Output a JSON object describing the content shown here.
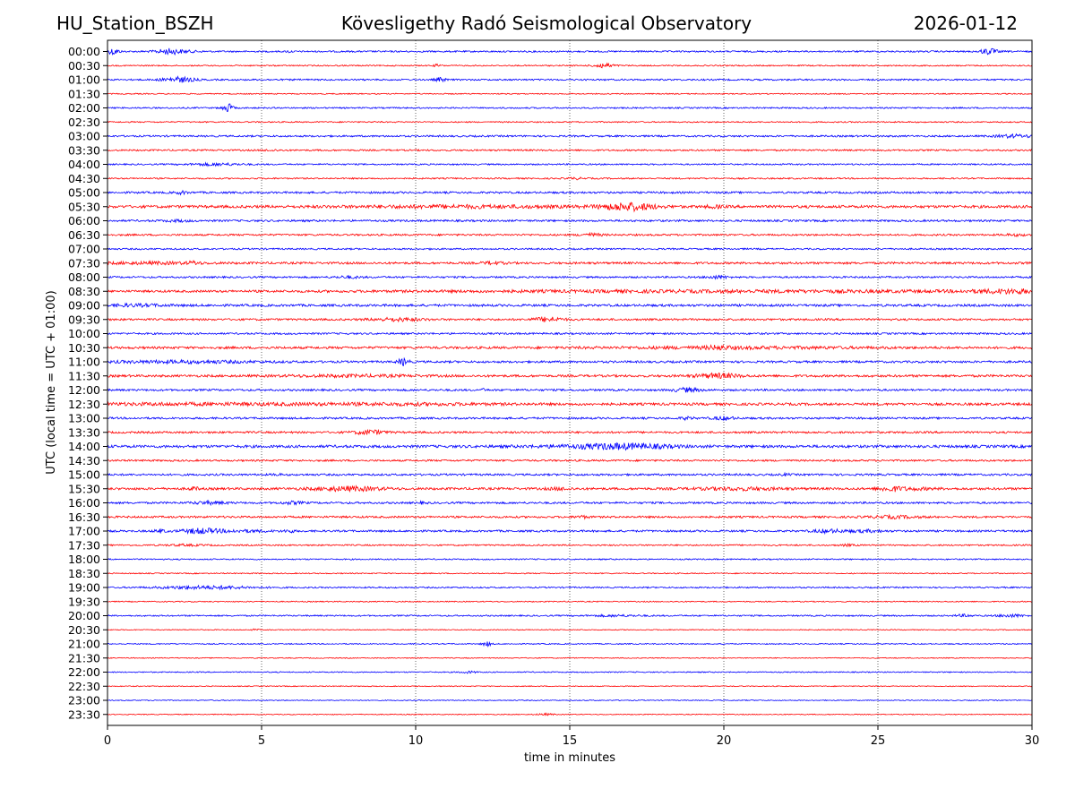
{
  "header": {
    "station": "HU_Station_BSZH",
    "title": "Kövesligethy Radó Seismological Observatory",
    "date": "2026-01-12"
  },
  "chart_data": {
    "type": "line",
    "title": "Kövesligethy Radó Seismological Observatory",
    "xlabel": "time in minutes",
    "ylabel": "UTC (local time = UTC + 01:00)",
    "xlim": [
      0,
      30
    ],
    "xticks": [
      0,
      5,
      10,
      15,
      20,
      25,
      30
    ],
    "grid": "vertical dotted at 5-minute ticks",
    "colors": {
      "even": "#0000ff",
      "odd": "#ff0000"
    },
    "rows": [
      {
        "label": "00:00",
        "noise": 0.9,
        "events": [
          [
            0.2,
            3.5,
            0.12
          ],
          [
            2.0,
            1.8,
            0.25
          ],
          [
            2.2,
            1.2,
            0.5
          ],
          [
            5.9,
            1.0,
            0.06
          ],
          [
            28.6,
            3.2,
            0.18
          ]
        ]
      },
      {
        "label": "00:30",
        "noise": 0.7,
        "events": [
          [
            10.7,
            1.2,
            0.08
          ],
          [
            16.1,
            2.8,
            0.22
          ]
        ]
      },
      {
        "label": "01:00",
        "noise": 0.9,
        "events": [
          [
            2.3,
            2.8,
            0.35
          ],
          [
            10.8,
            2.0,
            0.12
          ]
        ]
      },
      {
        "label": "01:30",
        "noise": 0.6,
        "events": []
      },
      {
        "label": "02:00",
        "noise": 0.8,
        "events": [
          [
            3.9,
            4.5,
            0.12
          ]
        ]
      },
      {
        "label": "02:30",
        "noise": 0.7,
        "events": []
      },
      {
        "label": "03:00",
        "noise": 1.0,
        "events": [
          [
            29.4,
            1.5,
            0.4
          ]
        ]
      },
      {
        "label": "03:30",
        "noise": 0.9,
        "events": [
          [
            5.3,
            0.6,
            0.2
          ]
        ]
      },
      {
        "label": "04:00",
        "noise": 0.8,
        "events": [
          [
            3.5,
            1.2,
            0.6
          ]
        ]
      },
      {
        "label": "04:30",
        "noise": 0.8,
        "events": [
          [
            15.2,
            0.8,
            0.2
          ]
        ]
      },
      {
        "label": "05:00",
        "noise": 1.1,
        "events": [
          [
            2.4,
            1.3,
            0.15
          ]
        ]
      },
      {
        "label": "05:30",
        "noise": 1.5,
        "events": [
          [
            11.5,
            1.0,
            2.5
          ],
          [
            16.9,
            3.8,
            0.6
          ],
          [
            19.7,
            1.2,
            0.2
          ]
        ]
      },
      {
        "label": "06:00",
        "noise": 1.1,
        "events": [
          [
            2.3,
            0.8,
            0.3
          ]
        ]
      },
      {
        "label": "06:30",
        "noise": 1.0,
        "events": [
          [
            15.7,
            1.4,
            0.25
          ],
          [
            29.5,
            0.8,
            0.3
          ]
        ]
      },
      {
        "label": "07:00",
        "noise": 0.9,
        "events": []
      },
      {
        "label": "07:30",
        "noise": 1.2,
        "events": [
          [
            1.5,
            0.9,
            1.2
          ],
          [
            2.8,
            1.3,
            0.12
          ],
          [
            12.5,
            1.2,
            0.25
          ]
        ]
      },
      {
        "label": "08:00",
        "noise": 1.0,
        "events": [
          [
            7.8,
            0.9,
            0.3
          ],
          [
            19.8,
            1.4,
            0.25
          ]
        ]
      },
      {
        "label": "08:30",
        "noise": 1.2,
        "events": [
          [
            21.0,
            0.9,
            8.0
          ],
          [
            29.3,
            1.6,
            0.8
          ]
        ]
      },
      {
        "label": "09:00",
        "noise": 1.3,
        "events": [
          [
            0.8,
            1.0,
            0.8
          ]
        ]
      },
      {
        "label": "09:30",
        "noise": 1.1,
        "events": [
          [
            9.4,
            1.5,
            0.6
          ],
          [
            14.3,
            2.2,
            0.35
          ]
        ]
      },
      {
        "label": "10:00",
        "noise": 1.0,
        "events": []
      },
      {
        "label": "10:30",
        "noise": 1.3,
        "events": [
          [
            19.8,
            1.3,
            0.25
          ],
          [
            20.5,
            0.8,
            3.0
          ]
        ]
      },
      {
        "label": "11:00",
        "noise": 1.2,
        "events": [
          [
            2.5,
            1.1,
            1.8
          ],
          [
            9.6,
            3.5,
            0.12
          ]
        ]
      },
      {
        "label": "11:30",
        "noise": 1.3,
        "events": [
          [
            7.8,
            0.8,
            1.5
          ],
          [
            19.8,
            2.2,
            0.5
          ]
        ]
      },
      {
        "label": "12:00",
        "noise": 1.1,
        "events": [
          [
            12.2,
            1.0,
            0.05
          ],
          [
            18.8,
            2.0,
            0.3
          ]
        ]
      },
      {
        "label": "12:30",
        "noise": 1.4,
        "events": [
          [
            3.0,
            0.8,
            4.0
          ],
          [
            10.0,
            0.6,
            2.0
          ]
        ]
      },
      {
        "label": "13:00",
        "noise": 1.1,
        "events": [
          [
            18.8,
            1.2,
            0.15
          ],
          [
            20.0,
            1.6,
            0.25
          ]
        ]
      },
      {
        "label": "13:30",
        "noise": 1.1,
        "events": [
          [
            8.5,
            2.2,
            0.35
          ]
        ]
      },
      {
        "label": "14:00",
        "noise": 1.5,
        "events": [
          [
            16.8,
            2.2,
            1.0
          ],
          [
            15.5,
            0.8,
            1.5
          ]
        ]
      },
      {
        "label": "14:30",
        "noise": 1.0,
        "events": []
      },
      {
        "label": "15:00",
        "noise": 1.1,
        "events": [
          [
            5.5,
            0.9,
            0.1
          ],
          [
            22.0,
            0.9,
            0.1
          ]
        ]
      },
      {
        "label": "15:30",
        "noise": 1.3,
        "events": [
          [
            2.8,
            1.5,
            0.12
          ],
          [
            7.8,
            2.0,
            0.8
          ],
          [
            14.7,
            1.0,
            0.3
          ],
          [
            20.5,
            1.2,
            1.0
          ],
          [
            25.4,
            1.8,
            0.25
          ],
          [
            26.0,
            1.0,
            0.6
          ]
        ]
      },
      {
        "label": "16:00",
        "noise": 1.1,
        "events": [
          [
            3.3,
            1.3,
            0.4
          ],
          [
            6.0,
            1.2,
            0.25
          ],
          [
            10.2,
            0.8,
            0.1
          ]
        ]
      },
      {
        "label": "16:30",
        "noise": 1.1,
        "events": [
          [
            15.4,
            1.2,
            0.15
          ],
          [
            25.5,
            1.2,
            0.6
          ]
        ]
      },
      {
        "label": "17:00",
        "noise": 1.1,
        "events": [
          [
            1.7,
            1.6,
            0.12
          ],
          [
            3.0,
            2.3,
            0.4
          ],
          [
            4.2,
            1.0,
            0.8
          ],
          [
            5.9,
            1.5,
            0.1
          ],
          [
            23.4,
            1.6,
            0.35
          ],
          [
            24.6,
            1.1,
            0.4
          ]
        ]
      },
      {
        "label": "17:30",
        "noise": 0.8,
        "events": [
          [
            2.5,
            0.7,
            0.5
          ],
          [
            24.0,
            0.8,
            0.2
          ]
        ]
      },
      {
        "label": "18:00",
        "noise": 0.7,
        "events": []
      },
      {
        "label": "18:30",
        "noise": 0.6,
        "events": []
      },
      {
        "label": "19:00",
        "noise": 0.8,
        "events": [
          [
            3.2,
            1.6,
            1.1
          ]
        ]
      },
      {
        "label": "19:30",
        "noise": 0.6,
        "events": []
      },
      {
        "label": "20:00",
        "noise": 0.8,
        "events": [
          [
            16.5,
            0.8,
            0.6
          ],
          [
            27.8,
            1.2,
            0.2
          ],
          [
            29.3,
            1.4,
            0.3
          ]
        ]
      },
      {
        "label": "20:30",
        "noise": 0.5,
        "events": [
          [
            4.8,
            0.9,
            0.08
          ]
        ]
      },
      {
        "label": "21:00",
        "noise": 0.6,
        "events": [
          [
            12.3,
            2.5,
            0.1
          ]
        ]
      },
      {
        "label": "21:30",
        "noise": 0.5,
        "events": []
      },
      {
        "label": "22:00",
        "noise": 0.6,
        "events": [
          [
            11.7,
            1.0,
            0.2
          ]
        ]
      },
      {
        "label": "22:30",
        "noise": 0.5,
        "events": []
      },
      {
        "label": "23:00",
        "noise": 0.5,
        "events": []
      },
      {
        "label": "23:30",
        "noise": 0.5,
        "events": [
          [
            14.2,
            0.9,
            0.2
          ]
        ]
      }
    ]
  }
}
